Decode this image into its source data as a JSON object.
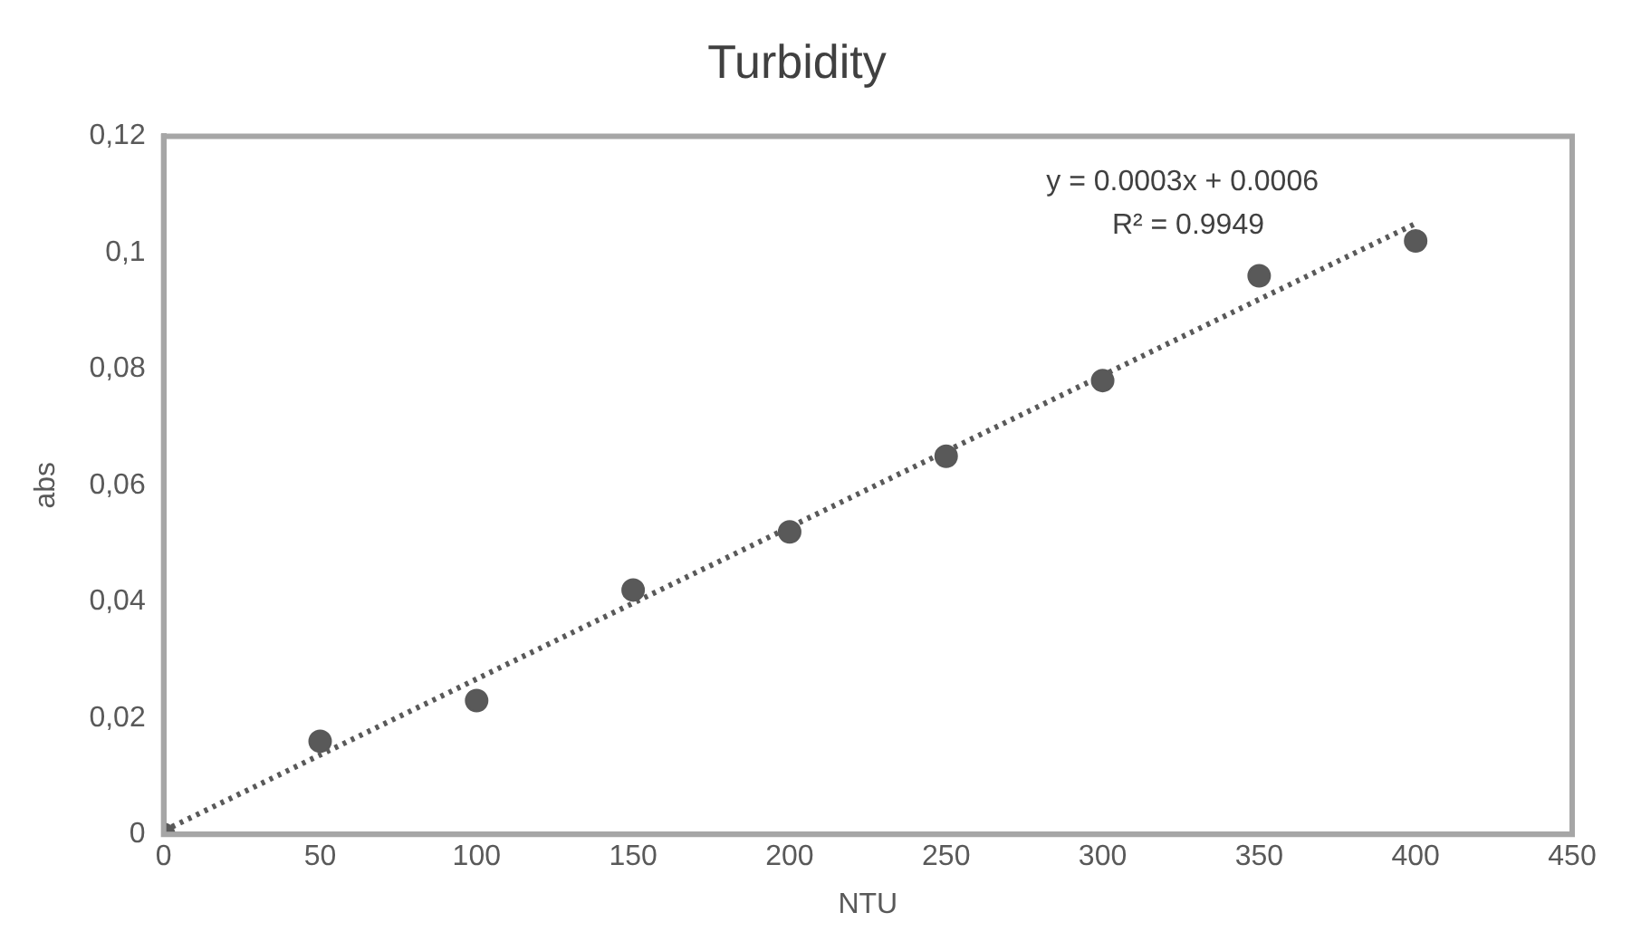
{
  "chart_data": {
    "type": "scatter",
    "title": "Turbidity",
    "xlabel": "NTU",
    "ylabel": "abs",
    "x": [
      0,
      50,
      100,
      150,
      200,
      250,
      300,
      350,
      400
    ],
    "series": [
      {
        "type": "scatter",
        "color": "#595959",
        "marker": "circle",
        "values": [
          0,
          0.016,
          0.023,
          0.042,
          0.052,
          0.065,
          0.078,
          0.096,
          0.102
        ]
      },
      {
        "type": "line",
        "color": "#595959",
        "line_style": "dotted",
        "marker": "none",
        "x": [
          0,
          400
        ],
        "values": [
          0.0006,
          0.105
        ]
      }
    ],
    "xlim": [
      0,
      450
    ],
    "xticks": [
      0,
      50,
      100,
      150,
      200,
      250,
      300,
      350,
      400,
      450
    ],
    "ylim": [
      0,
      0.12
    ],
    "yticks": [
      {
        "value": 0,
        "label": "0"
      },
      {
        "value": 0.02,
        "label": "0,02"
      },
      {
        "value": 0.04,
        "label": "0,04"
      },
      {
        "value": 0.06,
        "label": "0,06"
      },
      {
        "value": 0.08,
        "label": "0,08"
      },
      {
        "value": 0.1,
        "label": "0,1"
      },
      {
        "value": 0.12,
        "label": "0,12"
      }
    ],
    "grid": false,
    "legend": false,
    "annotations": [
      "y = 0.0003x + 0.0006",
      "R² = 0.9949"
    ]
  }
}
